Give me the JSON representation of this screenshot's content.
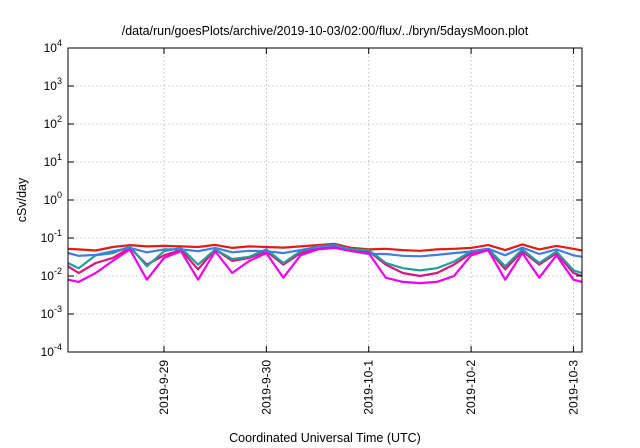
{
  "chart_data": {
    "type": "line",
    "title": "/data/run/goesPlots/archive/2019-10-03/02:00/flux/../bryn/5daysMoon.plot",
    "xlabel": "Coordinated Universal Time (UTC)",
    "ylabel": "cSv/day",
    "yscale": "log",
    "ylim": [
      0.0001,
      10000
    ],
    "xlim": [
      "2019-09-28T01:30",
      "2019-10-03T02:00"
    ],
    "grid": true,
    "y_ticks": [
      {
        "value": 0.0001,
        "base": "10",
        "exp": "-4"
      },
      {
        "value": 0.001,
        "base": "10",
        "exp": "-3"
      },
      {
        "value": 0.01,
        "base": "10",
        "exp": "-2"
      },
      {
        "value": 0.1,
        "base": "10",
        "exp": "-1"
      },
      {
        "value": 1,
        "base": "10",
        "exp": "0"
      },
      {
        "value": 10,
        "base": "10",
        "exp": "1"
      },
      {
        "value": 100,
        "base": "10",
        "exp": "2"
      },
      {
        "value": 1000,
        "base": "10",
        "exp": "3"
      },
      {
        "value": 10000,
        "base": "10",
        "exp": "4"
      }
    ],
    "x_ticks": [
      {
        "value": "2019-09-29T00:00",
        "label": "2019-9-29"
      },
      {
        "value": "2019-09-30T00:00",
        "label": "2019-9-30"
      },
      {
        "value": "2019-10-01T00:00",
        "label": "2019-10-1"
      },
      {
        "value": "2019-10-02T00:00",
        "label": "2019-10-2"
      },
      {
        "value": "2019-10-03T00:00",
        "label": "2019-10-3"
      }
    ],
    "series": [
      {
        "color": "#e8190e",
        "x": [
          "2019-09-28T01:30",
          "2019-09-28T04:00",
          "2019-09-28T08:00",
          "2019-09-28T12:00",
          "2019-09-28T16:00",
          "2019-09-28T20:00",
          "2019-09-29T00:00",
          "2019-09-29T04:00",
          "2019-09-29T08:00",
          "2019-09-29T12:00",
          "2019-09-29T16:00",
          "2019-09-29T20:00",
          "2019-09-30T00:00",
          "2019-09-30T04:00",
          "2019-09-30T08:00",
          "2019-09-30T12:00",
          "2019-09-30T16:00",
          "2019-09-30T20:00",
          "2019-10-01T00:00",
          "2019-10-01T04:00",
          "2019-10-01T08:00",
          "2019-10-01T12:00",
          "2019-10-01T16:00",
          "2019-10-01T20:00",
          "2019-10-02T00:00",
          "2019-10-02T04:00",
          "2019-10-02T08:00",
          "2019-10-02T12:00",
          "2019-10-02T16:00",
          "2019-10-02T20:00",
          "2019-10-03T00:00",
          "2019-10-03T02:00"
        ],
        "y": [
          0.052,
          0.05,
          0.047,
          0.058,
          0.065,
          0.06,
          0.062,
          0.06,
          0.058,
          0.066,
          0.055,
          0.06,
          0.058,
          0.056,
          0.06,
          0.065,
          0.07,
          0.055,
          0.05,
          0.052,
          0.048,
          0.046,
          0.05,
          0.052,
          0.055,
          0.065,
          0.048,
          0.068,
          0.05,
          0.062,
          0.052,
          0.047
        ]
      },
      {
        "color": "#e0147a",
        "x": [
          "2019-09-28T01:30",
          "2019-09-28T04:00",
          "2019-09-28T08:00",
          "2019-09-28T12:00",
          "2019-09-28T16:00",
          "2019-09-28T20:00",
          "2019-09-29T00:00",
          "2019-09-29T04:00",
          "2019-09-29T08:00",
          "2019-09-29T12:00",
          "2019-09-29T16:00",
          "2019-09-29T20:00",
          "2019-09-30T00:00",
          "2019-09-30T04:00",
          "2019-09-30T08:00",
          "2019-09-30T12:00",
          "2019-09-30T16:00",
          "2019-09-30T20:00",
          "2019-10-01T00:00",
          "2019-10-01T04:00",
          "2019-10-01T08:00",
          "2019-10-01T12:00",
          "2019-10-01T16:00",
          "2019-10-01T20:00",
          "2019-10-02T00:00",
          "2019-10-02T04:00",
          "2019-10-02T08:00",
          "2019-10-02T12:00",
          "2019-10-02T16:00",
          "2019-10-02T20:00",
          "2019-10-03T00:00",
          "2019-10-03T02:00"
        ],
        "y": [
          0.018,
          0.012,
          0.022,
          0.03,
          0.055,
          0.02,
          0.035,
          0.048,
          0.015,
          0.05,
          0.025,
          0.03,
          0.045,
          0.02,
          0.04,
          0.055,
          0.06,
          0.05,
          0.045,
          0.02,
          0.012,
          0.01,
          0.012,
          0.02,
          0.04,
          0.05,
          0.015,
          0.045,
          0.02,
          0.04,
          0.012,
          0.01
        ]
      },
      {
        "color": "#1f9e9b",
        "x": [
          "2019-09-28T01:30",
          "2019-09-28T04:00",
          "2019-09-28T08:00",
          "2019-09-28T12:00",
          "2019-09-28T16:00",
          "2019-09-28T20:00",
          "2019-09-29T00:00",
          "2019-09-29T04:00",
          "2019-09-29T08:00",
          "2019-09-29T12:00",
          "2019-09-29T16:00",
          "2019-09-29T20:00",
          "2019-09-30T00:00",
          "2019-09-30T04:00",
          "2019-09-30T08:00",
          "2019-09-30T12:00",
          "2019-09-30T16:00",
          "2019-09-30T20:00",
          "2019-10-01T00:00",
          "2019-10-01T04:00",
          "2019-10-01T08:00",
          "2019-10-01T12:00",
          "2019-10-01T16:00",
          "2019-10-01T20:00",
          "2019-10-02T00:00",
          "2019-10-02T04:00",
          "2019-10-02T08:00",
          "2019-10-02T12:00",
          "2019-10-02T16:00",
          "2019-10-02T20:00",
          "2019-10-03T00:00",
          "2019-10-03T02:00"
        ],
        "y": [
          0.022,
          0.016,
          0.035,
          0.04,
          0.06,
          0.018,
          0.045,
          0.055,
          0.02,
          0.05,
          0.028,
          0.032,
          0.05,
          0.022,
          0.045,
          0.06,
          0.065,
          0.05,
          0.048,
          0.022,
          0.016,
          0.014,
          0.016,
          0.024,
          0.045,
          0.052,
          0.018,
          0.05,
          0.022,
          0.044,
          0.014,
          0.012
        ]
      },
      {
        "color": "#3d7de8",
        "x": [
          "2019-09-28T01:30",
          "2019-09-28T04:00",
          "2019-09-28T08:00",
          "2019-09-28T12:00",
          "2019-09-28T16:00",
          "2019-09-28T20:00",
          "2019-09-29T00:00",
          "2019-09-29T04:00",
          "2019-09-29T08:00",
          "2019-09-29T12:00",
          "2019-09-29T16:00",
          "2019-09-29T20:00",
          "2019-09-30T00:00",
          "2019-09-30T04:00",
          "2019-09-30T08:00",
          "2019-09-30T12:00",
          "2019-09-30T16:00",
          "2019-09-30T20:00",
          "2019-10-01T00:00",
          "2019-10-01T04:00",
          "2019-10-01T08:00",
          "2019-10-01T12:00",
          "2019-10-01T16:00",
          "2019-10-01T20:00",
          "2019-10-02T00:00",
          "2019-10-02T04:00",
          "2019-10-02T08:00",
          "2019-10-02T12:00",
          "2019-10-02T16:00",
          "2019-10-02T20:00",
          "2019-10-03T00:00",
          "2019-10-03T02:00"
        ],
        "y": [
          0.04,
          0.034,
          0.036,
          0.045,
          0.055,
          0.042,
          0.05,
          0.05,
          0.045,
          0.055,
          0.042,
          0.046,
          0.045,
          0.04,
          0.048,
          0.058,
          0.065,
          0.045,
          0.038,
          0.038,
          0.034,
          0.033,
          0.036,
          0.04,
          0.044,
          0.052,
          0.035,
          0.056,
          0.038,
          0.05,
          0.035,
          0.032
        ]
      },
      {
        "color": "#ee00ee",
        "x": [
          "2019-09-28T01:30",
          "2019-09-28T04:00",
          "2019-09-28T08:00",
          "2019-09-28T12:00",
          "2019-09-28T16:00",
          "2019-09-28T20:00",
          "2019-09-29T00:00",
          "2019-09-29T04:00",
          "2019-09-29T08:00",
          "2019-09-29T12:00",
          "2019-09-29T16:00",
          "2019-09-29T20:00",
          "2019-09-30T00:00",
          "2019-09-30T04:00",
          "2019-09-30T08:00",
          "2019-09-30T12:00",
          "2019-09-30T16:00",
          "2019-09-30T20:00",
          "2019-10-01T00:00",
          "2019-10-01T04:00",
          "2019-10-01T08:00",
          "2019-10-01T12:00",
          "2019-10-01T16:00",
          "2019-10-01T20:00",
          "2019-10-02T00:00",
          "2019-10-02T04:00",
          "2019-10-02T08:00",
          "2019-10-02T12:00",
          "2019-10-02T16:00",
          "2019-10-02T20:00",
          "2019-10-03T00:00",
          "2019-10-03T02:00"
        ],
        "y": [
          0.008,
          0.007,
          0.012,
          0.025,
          0.05,
          0.008,
          0.03,
          0.045,
          0.008,
          0.045,
          0.012,
          0.025,
          0.04,
          0.009,
          0.035,
          0.05,
          0.055,
          0.045,
          0.04,
          0.009,
          0.007,
          0.0065,
          0.007,
          0.01,
          0.035,
          0.048,
          0.008,
          0.04,
          0.009,
          0.035,
          0.008,
          0.007
        ]
      }
    ]
  }
}
